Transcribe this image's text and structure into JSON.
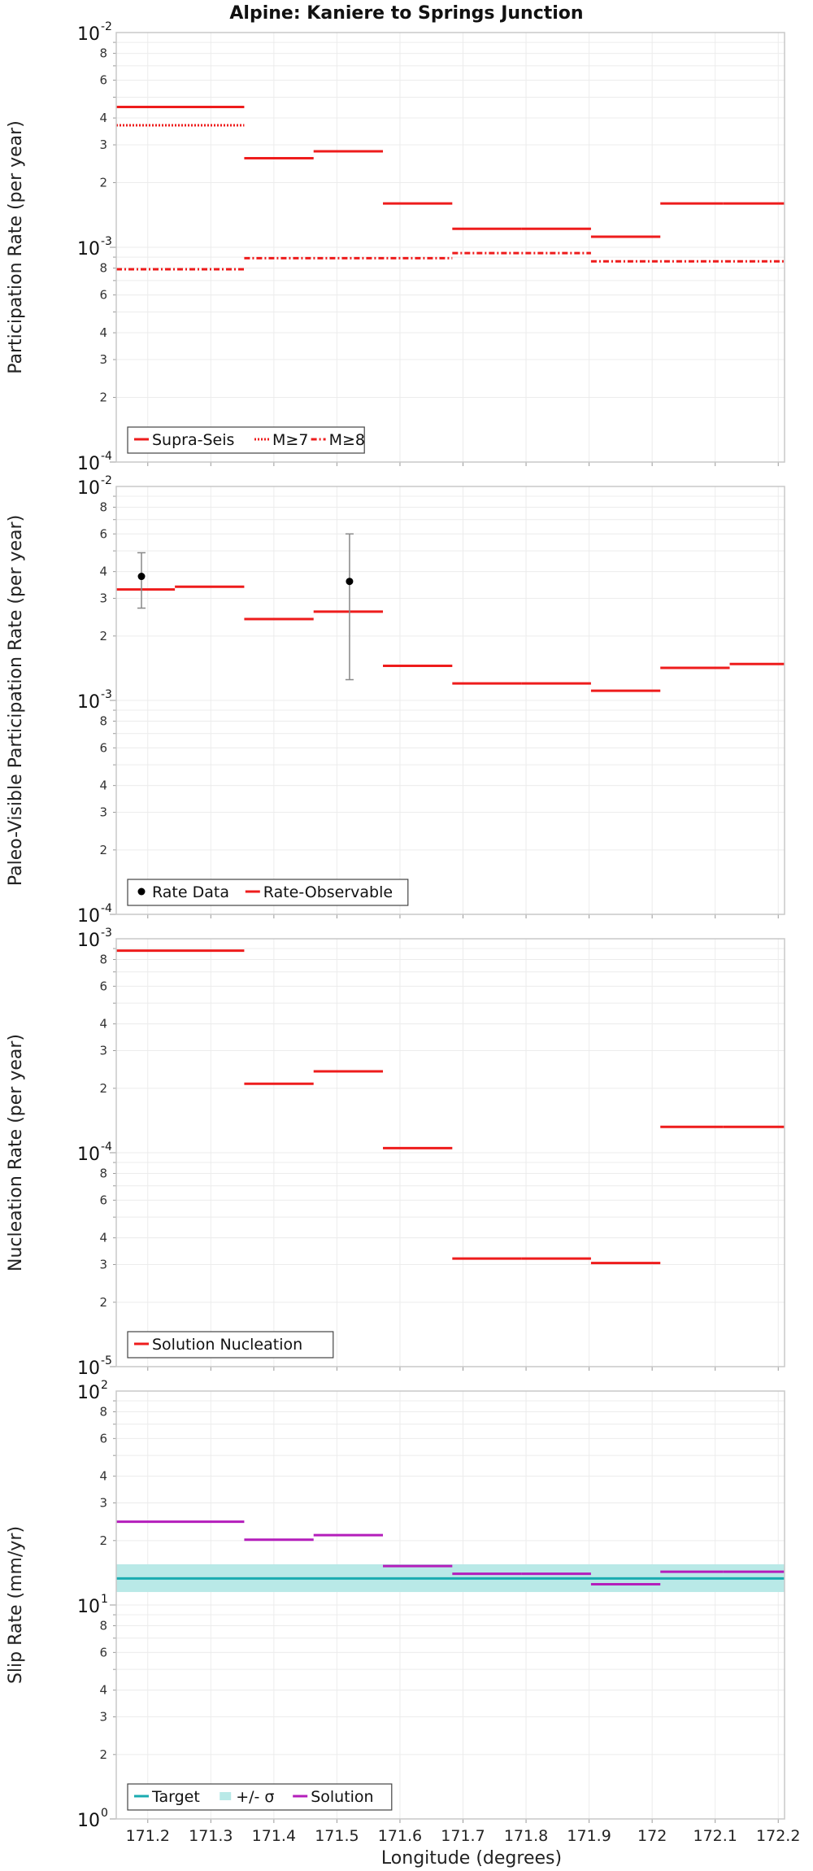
{
  "title": "Alpine: Kaniere to Springs Junction",
  "xlabel": "Longitude (degrees)",
  "x_ticks": [
    "171.2",
    "171.3",
    "171.4",
    "171.5",
    "171.6",
    "171.7",
    "171.8",
    "171.9",
    "172",
    "172.1",
    "172.2"
  ],
  "colors": {
    "red": "#ee1c1c",
    "magenta": "#b41ebb",
    "teal": "#1aabb0",
    "band": "#b9e9e7",
    "grid": "#ececec",
    "frame": "#c8c8c8",
    "text": "#222222"
  },
  "chart_data": [
    {
      "type": "line",
      "id": "participation",
      "ylabel": "Participation Rate (per year)",
      "yscale": "log",
      "ylim": [
        0.0001,
        0.01
      ],
      "xlim": [
        171.15,
        172.21
      ],
      "ytick_major_labels": [
        {
          "mant": "10",
          "exp": "-4"
        },
        {
          "mant": "10",
          "exp": "-3"
        },
        {
          "mant": "10",
          "exp": "-2"
        }
      ],
      "series": [
        {
          "name": "Supra-Seis",
          "style": "solid",
          "color": "#ee1c1c",
          "segments": [
            [
              171.15,
              171.353,
              0.0045
            ],
            [
              171.353,
              171.463,
              0.0026
            ],
            [
              171.463,
              171.573,
              0.0028
            ],
            [
              171.573,
              171.683,
              0.0016
            ],
            [
              171.683,
              171.793,
              0.00122
            ],
            [
              171.793,
              171.903,
              0.00122
            ],
            [
              171.903,
              172.013,
              0.00112
            ],
            [
              172.013,
              172.113,
              0.0016
            ],
            [
              172.113,
              172.21,
              0.0016
            ]
          ]
        },
        {
          "name": "M≥7",
          "style": "dotted",
          "color": "#ee1c1c",
          "segments": [
            [
              171.15,
              171.353,
              0.0037
            ]
          ]
        },
        {
          "name": "M≥8",
          "style": "dashdot",
          "color": "#ee1c1c",
          "segments": [
            [
              171.15,
              171.353,
              0.00079
            ],
            [
              171.353,
              171.683,
              0.00089
            ],
            [
              171.683,
              171.903,
              0.00094
            ],
            [
              171.903,
              172.21,
              0.00086
            ]
          ]
        }
      ],
      "legend": [
        "Supra-Seis",
        "M≥7",
        "M≥8"
      ]
    },
    {
      "type": "line",
      "id": "paleo",
      "ylabel": "Paleo-Visible Participation Rate (per year)",
      "yscale": "log",
      "ylim": [
        0.0001,
        0.01
      ],
      "xlim": [
        171.15,
        172.21
      ],
      "ytick_major_labels": [
        {
          "mant": "10",
          "exp": "-4"
        },
        {
          "mant": "10",
          "exp": "-3"
        },
        {
          "mant": "10",
          "exp": "-2"
        }
      ],
      "series": [
        {
          "name": "Rate-Observable",
          "style": "solid",
          "color": "#ee1c1c",
          "segments": [
            [
              171.15,
              171.243,
              0.0033
            ],
            [
              171.243,
              171.353,
              0.0034
            ],
            [
              171.353,
              171.463,
              0.0024
            ],
            [
              171.463,
              171.573,
              0.0026
            ],
            [
              171.573,
              171.683,
              0.00145
            ],
            [
              171.683,
              171.793,
              0.0012
            ],
            [
              171.793,
              171.903,
              0.0012
            ],
            [
              171.903,
              172.013,
              0.00111
            ],
            [
              172.013,
              172.123,
              0.00142
            ],
            [
              172.123,
              172.21,
              0.00148
            ]
          ]
        }
      ],
      "points": {
        "name": "Rate Data",
        "data": [
          {
            "x": 171.19,
            "y": 0.0038,
            "lo": 0.0027,
            "hi": 0.0049
          },
          {
            "x": 171.52,
            "y": 0.0036,
            "lo": 0.00125,
            "hi": 0.006
          }
        ]
      },
      "legend": [
        "Rate Data",
        "Rate-Observable"
      ]
    },
    {
      "type": "line",
      "id": "nucleation",
      "ylabel": "Nucleation Rate (per year)",
      "yscale": "log",
      "ylim": [
        1e-05,
        0.001
      ],
      "xlim": [
        171.15,
        172.21
      ],
      "ytick_major_labels": [
        {
          "mant": "10",
          "exp": "-5"
        },
        {
          "mant": "10",
          "exp": "-4"
        },
        {
          "mant": "10",
          "exp": "-3"
        }
      ],
      "series": [
        {
          "name": "Solution Nucleation",
          "style": "solid",
          "color": "#ee1c1c",
          "segments": [
            [
              171.15,
              171.353,
              0.00088
            ],
            [
              171.353,
              171.463,
              0.00021
            ],
            [
              171.463,
              171.573,
              0.00024
            ],
            [
              171.573,
              171.683,
              0.000105
            ],
            [
              171.683,
              171.793,
              3.2e-05
            ],
            [
              171.793,
              171.903,
              3.2e-05
            ],
            [
              171.903,
              172.013,
              3.05e-05
            ],
            [
              172.013,
              172.113,
              0.000132
            ],
            [
              172.113,
              172.21,
              0.000132
            ]
          ]
        }
      ],
      "legend": [
        "Solution Nucleation"
      ]
    },
    {
      "type": "line",
      "id": "slip",
      "ylabel": "Slip Rate (mm/yr)",
      "yscale": "log",
      "ylim": [
        1,
        100
      ],
      "xlim": [
        171.15,
        172.21
      ],
      "ytick_major_labels": [
        {
          "mant": "10",
          "exp": "0"
        },
        {
          "mant": "10",
          "exp": "1"
        },
        {
          "mant": "10",
          "exp": "2"
        }
      ],
      "band": {
        "name": "+/- σ",
        "lo": 11.5,
        "hi": 15.5,
        "color": "#b9e9e7"
      },
      "series": [
        {
          "name": "Target",
          "style": "solid",
          "color": "#1aabb0",
          "segments": [
            [
              171.15,
              172.21,
              13.3
            ]
          ]
        },
        {
          "name": "Solution",
          "style": "solid",
          "color": "#b41ebb",
          "segments": [
            [
              171.15,
              171.353,
              24.5
            ],
            [
              171.353,
              171.463,
              20.2
            ],
            [
              171.463,
              171.573,
              21.2
            ],
            [
              171.573,
              171.683,
              15.2
            ],
            [
              171.683,
              171.793,
              14.0
            ],
            [
              171.793,
              171.903,
              14.0
            ],
            [
              171.903,
              172.013,
              12.5
            ],
            [
              172.013,
              172.113,
              14.3
            ],
            [
              172.113,
              172.21,
              14.3
            ]
          ]
        }
      ],
      "legend": [
        "Target",
        "+/- σ",
        "Solution"
      ]
    }
  ],
  "minor_tick_labels": [
    "2",
    "3",
    "4",
    "6",
    "8"
  ]
}
